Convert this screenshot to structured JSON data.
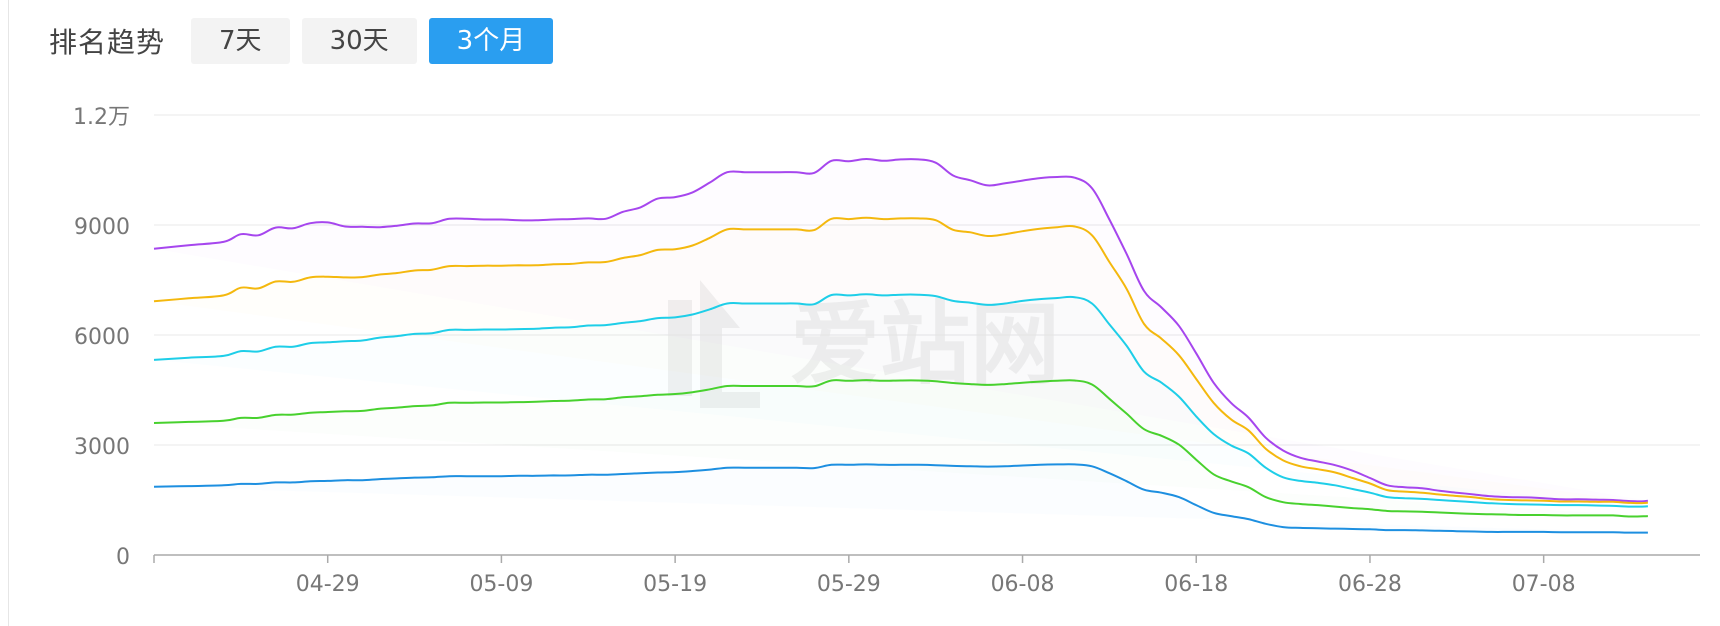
{
  "header": {
    "title": "排名趋势",
    "tabs": [
      {
        "label": "7天",
        "active": false
      },
      {
        "label": "30天",
        "active": false
      },
      {
        "label": "3个月",
        "active": true
      }
    ]
  },
  "watermark": "爱站网",
  "chart_data": {
    "type": "line",
    "title": "",
    "xlabel": "",
    "ylabel": "",
    "ylim": [
      0,
      12000
    ],
    "y_ticks": [
      0,
      3000,
      6000,
      9000,
      12000
    ],
    "y_tick_labels": [
      "0",
      "3000",
      "6000",
      "9000",
      "1.2万"
    ],
    "x_ticks": [
      "04-29",
      "05-09",
      "05-19",
      "05-29",
      "06-08",
      "06-18",
      "06-28",
      "07-08"
    ],
    "x_tick_days": [
      10,
      20,
      30,
      40,
      50,
      60,
      70,
      80
    ],
    "legend": "none",
    "grid": true,
    "days": [
      0,
      2,
      4,
      5,
      6,
      7,
      8,
      9,
      10,
      11,
      12,
      13,
      14,
      15,
      16,
      17,
      18,
      19,
      20,
      21,
      22,
      23,
      24,
      25,
      26,
      27,
      28,
      29,
      30,
      31,
      32,
      33,
      34,
      35,
      36,
      37,
      38,
      39,
      40,
      41,
      42,
      43,
      44,
      45,
      46,
      47,
      48,
      49,
      50,
      51,
      52,
      53,
      54,
      55,
      56,
      57,
      58,
      59,
      60,
      61,
      62,
      63,
      64,
      65,
      66,
      67,
      68,
      69,
      70,
      71,
      72,
      73,
      74,
      75,
      76,
      77,
      78,
      79,
      80,
      81,
      82,
      83,
      84,
      85,
      86,
      87,
      88,
      89
    ],
    "series": [
      {
        "color": "#a646ee",
        "values": [
          8350,
          8450,
          8540,
          8750,
          8720,
          8930,
          8910,
          9050,
          9070,
          8960,
          8950,
          8940,
          8980,
          9040,
          9050,
          9170,
          9170,
          9150,
          9150,
          9130,
          9130,
          9150,
          9160,
          9180,
          9170,
          9360,
          9480,
          9720,
          9760,
          9890,
          10160,
          10440,
          10440,
          10440,
          10440,
          10440,
          10420,
          10750,
          10740,
          10800,
          10750,
          10790,
          10790,
          10700,
          10350,
          10220,
          10080,
          10140,
          10210,
          10280,
          10310,
          10290,
          10000,
          9150,
          8200,
          7200,
          6750,
          6250,
          5500,
          4700,
          4150,
          3750,
          3200,
          2850,
          2650,
          2550,
          2450,
          2300,
          2100,
          1900,
          1850,
          1820,
          1750,
          1700,
          1650,
          1600,
          1580,
          1570,
          1550,
          1520,
          1520,
          1510,
          1500,
          1470,
          1480,
          1650
        ]
      },
      {
        "color": "#f4b80e",
        "values": [
          6920,
          7000,
          7080,
          7290,
          7270,
          7460,
          7450,
          7570,
          7590,
          7570,
          7580,
          7650,
          7690,
          7760,
          7780,
          7880,
          7880,
          7890,
          7890,
          7900,
          7900,
          7930,
          7940,
          7980,
          7990,
          8100,
          8180,
          8320,
          8340,
          8440,
          8650,
          8880,
          8880,
          8880,
          8880,
          8880,
          8860,
          9170,
          9160,
          9200,
          9160,
          9180,
          9180,
          9130,
          8870,
          8800,
          8700,
          8750,
          8830,
          8900,
          8940,
          8960,
          8720,
          7990,
          7250,
          6300,
          5900,
          5450,
          4800,
          4150,
          3700,
          3400,
          2900,
          2580,
          2420,
          2340,
          2250,
          2100,
          1950,
          1770,
          1730,
          1700,
          1650,
          1610,
          1570,
          1520,
          1500,
          1490,
          1480,
          1460,
          1460,
          1450,
          1450,
          1420,
          1430,
          1560
        ]
      },
      {
        "color": "#1ecee8",
        "values": [
          5320,
          5380,
          5430,
          5560,
          5550,
          5680,
          5680,
          5780,
          5800,
          5830,
          5850,
          5930,
          5970,
          6030,
          6050,
          6140,
          6140,
          6150,
          6150,
          6160,
          6170,
          6200,
          6210,
          6260,
          6270,
          6330,
          6380,
          6460,
          6480,
          6560,
          6700,
          6860,
          6860,
          6860,
          6860,
          6860,
          6840,
          7090,
          7080,
          7110,
          7080,
          7100,
          7100,
          7060,
          6930,
          6880,
          6820,
          6860,
          6930,
          6980,
          7010,
          7030,
          6860,
          6290,
          5700,
          5000,
          4700,
          4320,
          3780,
          3300,
          2990,
          2770,
          2380,
          2120,
          2020,
          1970,
          1900,
          1800,
          1700,
          1580,
          1550,
          1530,
          1500,
          1470,
          1440,
          1410,
          1390,
          1380,
          1370,
          1360,
          1360,
          1350,
          1340,
          1320,
          1330,
          1390
        ]
      },
      {
        "color": "#48d12e",
        "values": [
          3600,
          3630,
          3660,
          3740,
          3740,
          3820,
          3830,
          3880,
          3900,
          3920,
          3930,
          3990,
          4020,
          4060,
          4080,
          4150,
          4150,
          4160,
          4160,
          4170,
          4180,
          4200,
          4210,
          4240,
          4250,
          4300,
          4330,
          4370,
          4390,
          4440,
          4520,
          4610,
          4610,
          4610,
          4610,
          4610,
          4600,
          4760,
          4750,
          4770,
          4750,
          4760,
          4760,
          4740,
          4690,
          4660,
          4640,
          4660,
          4700,
          4730,
          4750,
          4760,
          4650,
          4260,
          3850,
          3430,
          3250,
          3010,
          2600,
          2200,
          2010,
          1850,
          1580,
          1440,
          1390,
          1360,
          1320,
          1280,
          1250,
          1200,
          1190,
          1180,
          1160,
          1140,
          1120,
          1110,
          1100,
          1090,
          1090,
          1080,
          1080,
          1080,
          1080,
          1050,
          1060,
          1070
        ]
      },
      {
        "color": "#1d8fe0",
        "values": [
          1860,
          1880,
          1900,
          1940,
          1940,
          1980,
          1980,
          2010,
          2020,
          2040,
          2040,
          2070,
          2090,
          2110,
          2120,
          2150,
          2150,
          2150,
          2150,
          2160,
          2160,
          2170,
          2170,
          2190,
          2190,
          2210,
          2230,
          2250,
          2260,
          2290,
          2330,
          2380,
          2380,
          2380,
          2380,
          2380,
          2370,
          2460,
          2460,
          2470,
          2460,
          2460,
          2460,
          2450,
          2430,
          2420,
          2410,
          2420,
          2440,
          2460,
          2470,
          2470,
          2420,
          2230,
          2010,
          1780,
          1700,
          1580,
          1360,
          1150,
          1060,
          980,
          850,
          760,
          740,
          730,
          720,
          710,
          700,
          680,
          680,
          670,
          660,
          650,
          640,
          630,
          630,
          630,
          630,
          620,
          620,
          620,
          620,
          610,
          610,
          610
        ]
      }
    ]
  }
}
